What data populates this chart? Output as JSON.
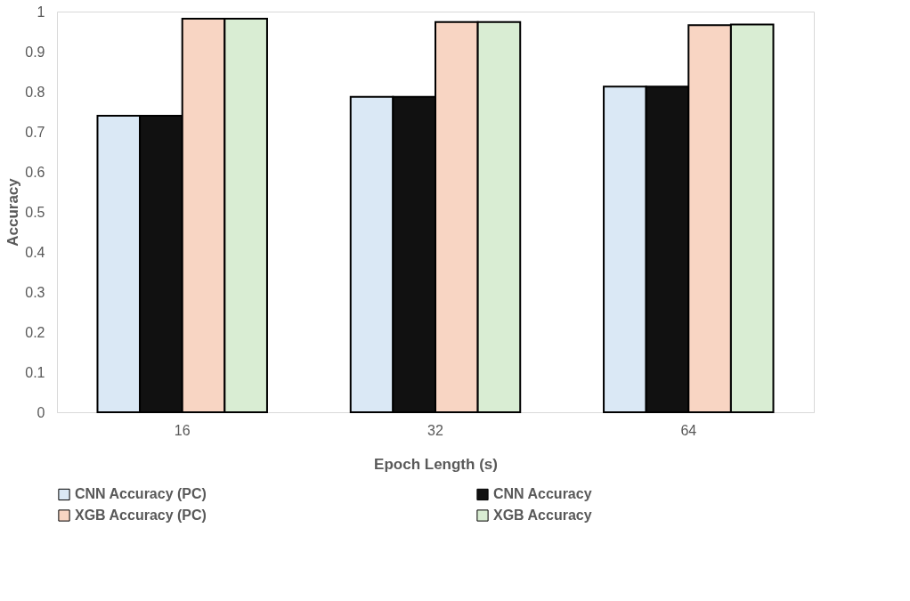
{
  "chart_data": {
    "type": "bar",
    "xlabel": "Epoch Length (s)",
    "ylabel": "Accuracy",
    "categories": [
      "16",
      "32",
      "64"
    ],
    "series": [
      {
        "name": "CNN Accuracy (PC)",
        "color": "#dae8f5",
        "values": [
          0.74,
          0.787,
          0.813
        ]
      },
      {
        "name": "CNN Accuracy",
        "color": "#111111",
        "values": [
          0.74,
          0.787,
          0.813
        ]
      },
      {
        "name": "XGB Accuracy (PC)",
        "color": "#f8d5c3",
        "values": [
          0.982,
          0.974,
          0.966
        ]
      },
      {
        "name": "XGB Accuracy",
        "color": "#d9edd3",
        "values": [
          0.982,
          0.974,
          0.968
        ]
      }
    ],
    "ylim": [
      0,
      1
    ],
    "yticks": [
      0,
      0.1,
      0.2,
      0.3,
      0.4,
      0.5,
      0.6,
      0.7,
      0.8,
      0.9,
      1
    ],
    "grid": false,
    "legend": "bottom"
  }
}
